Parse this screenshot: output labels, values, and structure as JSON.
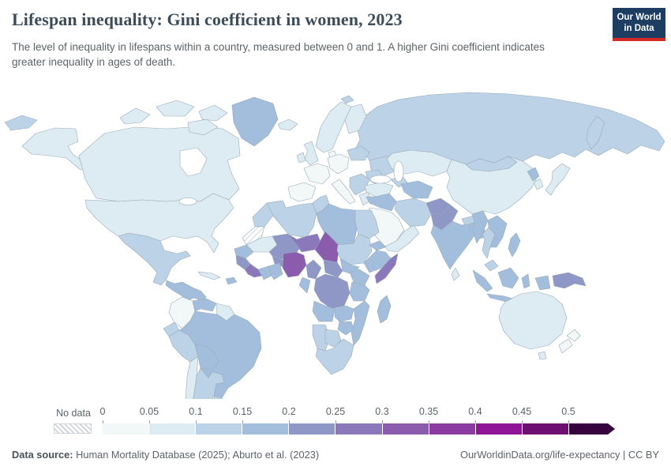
{
  "header": {
    "title": "Lifespan inequality: Gini coefficient in women, 2023",
    "subtitle": "The level of inequality in lifespans within a country, measured between 0 and 1. A higher Gini coefficient indicates greater inequality in ages of death.",
    "logo": {
      "line1": "Our World",
      "line2": "in Data",
      "bg_color": "#1d3d63",
      "accent_color": "#d42a25"
    }
  },
  "legend": {
    "no_data_label": "No data",
    "ticks": [
      "0",
      "0.05",
      "0.1",
      "0.15",
      "0.2",
      "0.25",
      "0.3",
      "0.35",
      "0.4",
      "0.45",
      "0.5"
    ],
    "bins": [
      {
        "range": "0-0.05",
        "color": "#f2f8f7"
      },
      {
        "range": "0.05-0.1",
        "color": "#ddebf2"
      },
      {
        "range": "0.1-0.15",
        "color": "#bcd2e6"
      },
      {
        "range": "0.15-0.2",
        "color": "#a2bedc"
      },
      {
        "range": "0.2-0.25",
        "color": "#8f97c7"
      },
      {
        "range": "0.25-0.3",
        "color": "#8b78ba"
      },
      {
        "range": "0.3-0.35",
        "color": "#8b5cae"
      },
      {
        "range": "0.35-0.4",
        "color": "#8c3ba1"
      },
      {
        "range": "0.4-0.45",
        "color": "#8f1597"
      },
      {
        "range": "0.45-0.5",
        "color": "#6e0d72"
      },
      {
        "range": ">0.5",
        "color": "#36033e"
      }
    ]
  },
  "footer": {
    "source_label": "Data source:",
    "source_text": " Human Mortality Database (2025); Aburto et al. (2023)",
    "attribution": "OurWorldinData.org/life-expectancy | CC BY"
  },
  "map": {
    "border_color": "#9aabb8",
    "ocean_color": "#ffffff",
    "countries": {
      "chukotka": "0.1-0.15",
      "kamchatka": "0.1-0.15",
      "russia": "0.1-0.15",
      "svalbard": "0.1-0.15",
      "alaska": "0.05-0.1",
      "canada": "0.05-0.1",
      "usa": "0.05-0.1",
      "greenland": "0.15-0.2",
      "mexico": "0.1-0.15",
      "central-america": "0.15-0.2",
      "cuba": "0.05-0.1",
      "hispaniola": "0.15-0.2",
      "colombia": "0-0.05",
      "venezuela": "0.15-0.2",
      "guyana": "0.05-0.1",
      "ecuador": "0.1-0.15",
      "peru": "0.1-0.15",
      "brazil": "0.15-0.2",
      "bolivia": "0.15-0.2",
      "paraguay": "0.15-0.2",
      "argentina": "0.1-0.15",
      "chile": "0.05-0.1",
      "uruguay": "0.1-0.15",
      "iceland": "0.05-0.1",
      "ireland": "0.05-0.1",
      "uk": "0.05-0.1",
      "norway-sweden": "0.05-0.1",
      "finland": "0.05-0.1",
      "denmark": "0-0.05",
      "germany": "0-0.05",
      "france": "0-0.05",
      "iberia": "0-0.05",
      "italy": "0-0.05",
      "balkans": "0.1-0.15",
      "greece": "0.05-0.1",
      "poland-baltics": "0.1-0.15",
      "ukraine": "0.1-0.15",
      "romania": "0.1-0.15",
      "turkey": "0.05-0.1",
      "caucasus": "0.1-0.15",
      "iraq-syria": "0.15-0.2",
      "iran": "0.1-0.15",
      "saudi-arabia": "0-0.05",
      "yemen-oman": "0.05-0.1",
      "kazakhstan": "0.05-0.1",
      "central-asia": "0.15-0.2",
      "afghanistan": "0.2-0.25",
      "pakistan": "0.2-0.25",
      "india": "0.15-0.2",
      "nepal": "0.1-0.15",
      "bangladesh": "0.15-0.2",
      "sri-lanka": "0.05-0.1",
      "china": "0.05-0.1",
      "mongolia": "0.1-0.15",
      "north-korea": "0.15-0.2",
      "south-korea": "0.05-0.1",
      "japan": "0.05-0.1",
      "myanmar": "0.15-0.2",
      "thailand": "0.1-0.15",
      "indochina": "0.15-0.2",
      "malaysia": "0.1-0.15",
      "indonesia": "0.15-0.2",
      "philippines": "0.15-0.2",
      "png": "0.2-0.25",
      "australia": "0.05-0.1",
      "new-zealand": "0-0.05",
      "morocco": "0.1-0.15",
      "western-sahara": "nodata",
      "algeria": "0.1-0.15",
      "tunisia": "0.1-0.15",
      "libya": "0.15-0.2",
      "egypt": "0.1-0.15",
      "mauritania": "0.05-0.1",
      "senegal": "0.15-0.2",
      "mali": "0.2-0.25",
      "burkina": "0.2-0.25",
      "guinea": "0.2-0.25",
      "sierra-leone": "0.25-0.3",
      "cote-divoire": "0.15-0.2",
      "ghana": "0.15-0.2",
      "niger": "0.25-0.3",
      "nigeria": "0.3-0.35",
      "chad": "0.3-0.35",
      "sudan": "0.1-0.15",
      "south-sudan": "0.15-0.2",
      "eritrea": "0.15-0.2",
      "ethiopia": "0.15-0.2",
      "somalia": "0.25-0.3",
      "car": "0.2-0.25",
      "cameroon": "0.2-0.25",
      "gabon-congo": "0.15-0.2",
      "drc": "0.2-0.25",
      "uganda-kenya": "0.15-0.2",
      "tanzania": "0.15-0.2",
      "angola": "0.15-0.2",
      "zambia": "0.15-0.2",
      "mozambique": "0.15-0.2",
      "zimbabwe": "0.15-0.2",
      "namibia": "0.1-0.15",
      "botswana": "0.1-0.15",
      "south-africa": "0.1-0.15",
      "madagascar": "0.15-0.2"
    }
  },
  "chart_data": {
    "type": "heatmap",
    "subtype": "choropleth-world-map",
    "title": "Lifespan inequality: Gini coefficient in women, 2023",
    "unit": "Gini coefficient (0–1)",
    "year": 2023,
    "legend_position": "bottom",
    "scale": {
      "min": 0,
      "max": 0.5,
      "step": 0.05,
      "open_ended_above": 0.5,
      "no_data": "hatched"
    },
    "values": {
      "Canada": "0.05-0.1",
      "United States": "0.05-0.1",
      "Greenland": "0.15-0.2",
      "Mexico": "0.1-0.15",
      "Central America": "0.15-0.2",
      "Cuba": "0.05-0.1",
      "Haiti/Dominican Rep.": "0.15-0.2",
      "Colombia": "0-0.05",
      "Venezuela": "0.15-0.2",
      "Guyana/Suriname": "0.05-0.1",
      "Ecuador": "0.1-0.15",
      "Peru": "0.1-0.15",
      "Brazil": "0.15-0.2",
      "Bolivia": "0.15-0.2",
      "Paraguay": "0.15-0.2",
      "Argentina": "0.1-0.15",
      "Chile": "0.05-0.1",
      "Uruguay": "0.1-0.15",
      "Western Europe": "0-0.05",
      "United Kingdom": "0.05-0.1",
      "Scandinavia": "0.05-0.1",
      "Eastern Europe": "0.1-0.15",
      "Ukraine": "0.1-0.15",
      "Russia": "0.1-0.15",
      "Turkey": "0.05-0.1",
      "Iran": "0.1-0.15",
      "Iraq/Syria": "0.15-0.2",
      "Saudi Arabia": "0-0.05",
      "Yemen/Oman": "0.05-0.1",
      "Kazakhstan": "0.05-0.1",
      "Central Asia": "0.15-0.2",
      "Afghanistan": "0.2-0.25",
      "Pakistan": "0.2-0.25",
      "India": "0.15-0.2",
      "Bangladesh": "0.15-0.2",
      "Sri Lanka": "0.05-0.1",
      "China": "0.05-0.1",
      "Mongolia": "0.1-0.15",
      "North Korea": "0.15-0.2",
      "South Korea": "0.05-0.1",
      "Japan": "0.05-0.1",
      "Myanmar": "0.15-0.2",
      "Thailand": "0.1-0.15",
      "Vietnam/Laos/Cambodia": "0.15-0.2",
      "Malaysia": "0.1-0.15",
      "Indonesia": "0.15-0.2",
      "Philippines": "0.15-0.2",
      "Papua New Guinea": "0.2-0.25",
      "Australia": "0.05-0.1",
      "New Zealand": "0-0.05",
      "Morocco": "0.1-0.15",
      "Western Sahara": "No data",
      "Algeria": "0.1-0.15",
      "Tunisia": "0.1-0.15",
      "Libya": "0.15-0.2",
      "Egypt": "0.1-0.15",
      "Mauritania": "0.05-0.1",
      "Senegal": "0.15-0.2",
      "Mali": "0.2-0.25",
      "Burkina Faso": "0.2-0.25",
      "Guinea": "0.2-0.25",
      "Sierra Leone/Liberia": "0.25-0.3",
      "Côte d'Ivoire": "0.15-0.2",
      "Ghana": "0.15-0.2",
      "Niger": "0.25-0.3",
      "Nigeria": "0.3-0.35",
      "Chad": "0.3-0.35",
      "Sudan": "0.1-0.15",
      "South Sudan": "0.15-0.2",
      "Eritrea": "0.15-0.2",
      "Ethiopia": "0.15-0.2",
      "Somalia": "0.25-0.3",
      "Central African Republic": "0.2-0.25",
      "Cameroon": "0.2-0.25",
      "Gabon/Congo": "0.15-0.2",
      "DR Congo": "0.2-0.25",
      "Uganda/Kenya": "0.15-0.2",
      "Tanzania": "0.15-0.2",
      "Angola": "0.15-0.2",
      "Zambia": "0.15-0.2",
      "Mozambique": "0.15-0.2",
      "Zimbabwe": "0.15-0.2",
      "Namibia": "0.1-0.15",
      "Botswana": "0.1-0.15",
      "South Africa": "0.1-0.15",
      "Madagascar": "0.15-0.2"
    }
  }
}
